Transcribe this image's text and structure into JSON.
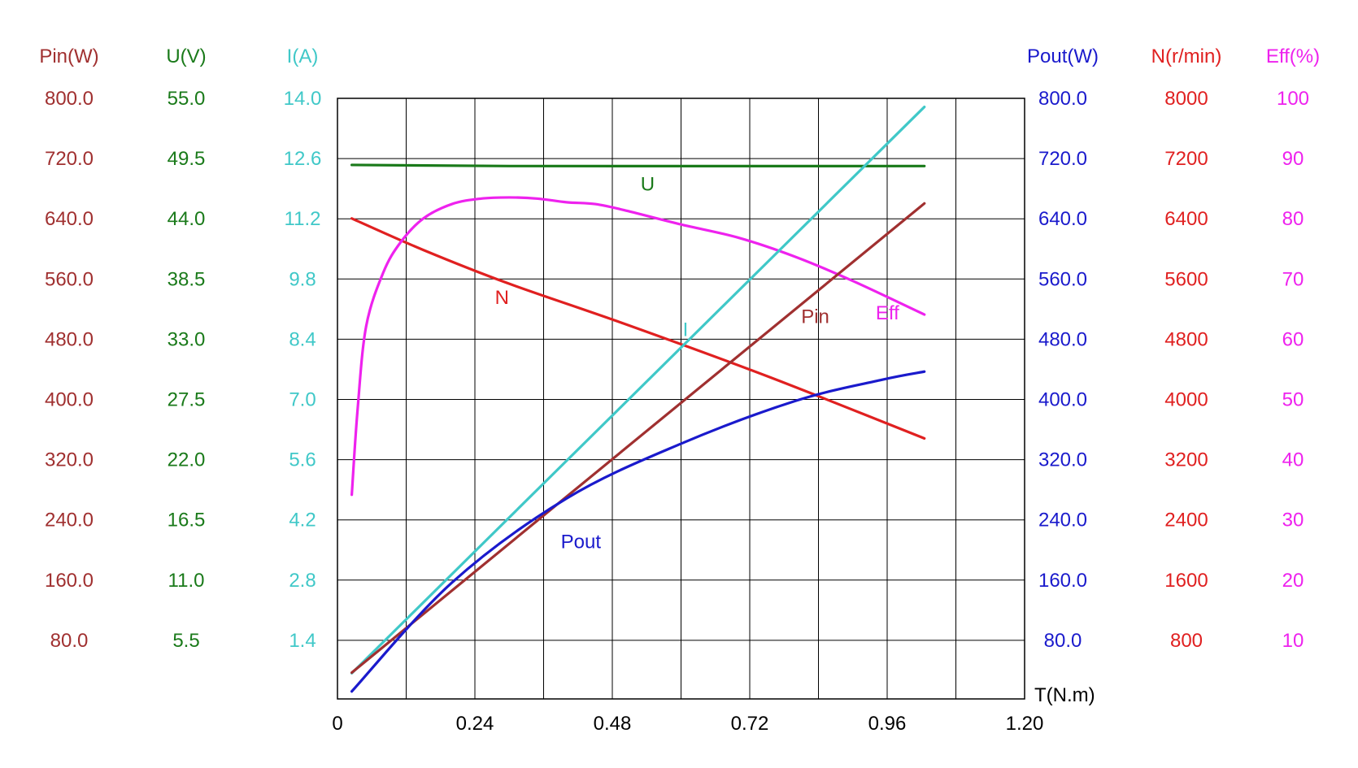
{
  "chart_data": {
    "type": "line",
    "title": "",
    "xlabel": "T(N.m)",
    "xlim": [
      0,
      1.2
    ],
    "x_ticks": [
      "0",
      "0.24",
      "0.48",
      "0.72",
      "0.96",
      "1.20"
    ],
    "grid": true,
    "left_axes": [
      {
        "key": "pin",
        "label": "Pin(W)",
        "color": "#a03030",
        "min": 0,
        "max": 800,
        "ticks": [
          "800.0",
          "720.0",
          "640.0",
          "560.0",
          "480.0",
          "400.0",
          "320.0",
          "240.0",
          "160.0",
          "80.0"
        ]
      },
      {
        "key": "u",
        "label": "U(V)",
        "color": "#1a7a1a",
        "min": 0,
        "max": 55,
        "ticks": [
          "55.0",
          "49.5",
          "44.0",
          "38.5",
          "33.0",
          "27.5",
          "22.0",
          "16.5",
          "11.0",
          "5.5"
        ]
      },
      {
        "key": "i",
        "label": "I(A)",
        "color": "#40c8c8",
        "min": 0,
        "max": 14,
        "ticks": [
          "14.0",
          "12.6",
          "11.2",
          "9.8",
          "8.4",
          "7.0",
          "5.6",
          "4.2",
          "2.8",
          "1.4"
        ]
      }
    ],
    "right_axes": [
      {
        "key": "pout",
        "label": "Pout(W)",
        "color": "#1a1acc",
        "min": 0,
        "max": 800,
        "ticks": [
          "800.0",
          "720.0",
          "640.0",
          "560.0",
          "480.0",
          "400.0",
          "320.0",
          "240.0",
          "160.0",
          "80.0"
        ]
      },
      {
        "key": "n",
        "label": "N(r/min)",
        "color": "#e02020",
        "min": 0,
        "max": 8000,
        "ticks": [
          "8000",
          "7200",
          "6400",
          "5600",
          "4800",
          "4000",
          "3200",
          "2400",
          "1600",
          "800"
        ]
      },
      {
        "key": "eff",
        "label": "Eff(%)",
        "color": "#ee22ee",
        "min": 0,
        "max": 100,
        "ticks": [
          "100",
          "90",
          "80",
          "70",
          "60",
          "50",
          "40",
          "30",
          "20",
          "10"
        ]
      }
    ],
    "series": [
      {
        "name": "U",
        "axis": "u",
        "color": "#1a7a1a",
        "x": [
          0.025,
          0.3,
          1.025
        ],
        "y": [
          48.9,
          48.8,
          48.8
        ]
      },
      {
        "name": "N",
        "axis": "n",
        "color": "#e02020",
        "x": [
          0.025,
          0.15,
          0.3,
          0.5,
          0.75,
          1.025
        ],
        "y": [
          6400,
          5980,
          5530,
          5000,
          4300,
          3470
        ]
      },
      {
        "name": "Eff",
        "axis": "eff",
        "color": "#ee22ee",
        "x": [
          0.025,
          0.035,
          0.05,
          0.08,
          0.11,
          0.15,
          0.2,
          0.25,
          0.3,
          0.35,
          0.4,
          0.45,
          0.5,
          0.6,
          0.7,
          0.8,
          0.9,
          1.025
        ],
        "y": [
          34,
          48,
          62,
          71,
          76,
          80,
          82.4,
          83.3,
          83.5,
          83.3,
          82.7,
          82.4,
          81.4,
          79,
          76.8,
          73.6,
          69.6,
          64
        ]
      },
      {
        "name": "I",
        "axis": "i",
        "color": "#40c8c8",
        "x": [
          0.025,
          1.025
        ],
        "y": [
          0.6,
          13.8
        ]
      },
      {
        "name": "Pin",
        "axis": "pin",
        "color": "#a03030",
        "x": [
          0.025,
          1.025
        ],
        "y": [
          35,
          660
        ]
      },
      {
        "name": "Pout",
        "axis": "pout",
        "color": "#1a1acc",
        "x": [
          0.025,
          0.2,
          0.4,
          0.6,
          0.8,
          0.95,
          1.025
        ],
        "y": [
          10,
          155,
          267,
          340,
          397,
          425,
          436
        ]
      }
    ]
  }
}
